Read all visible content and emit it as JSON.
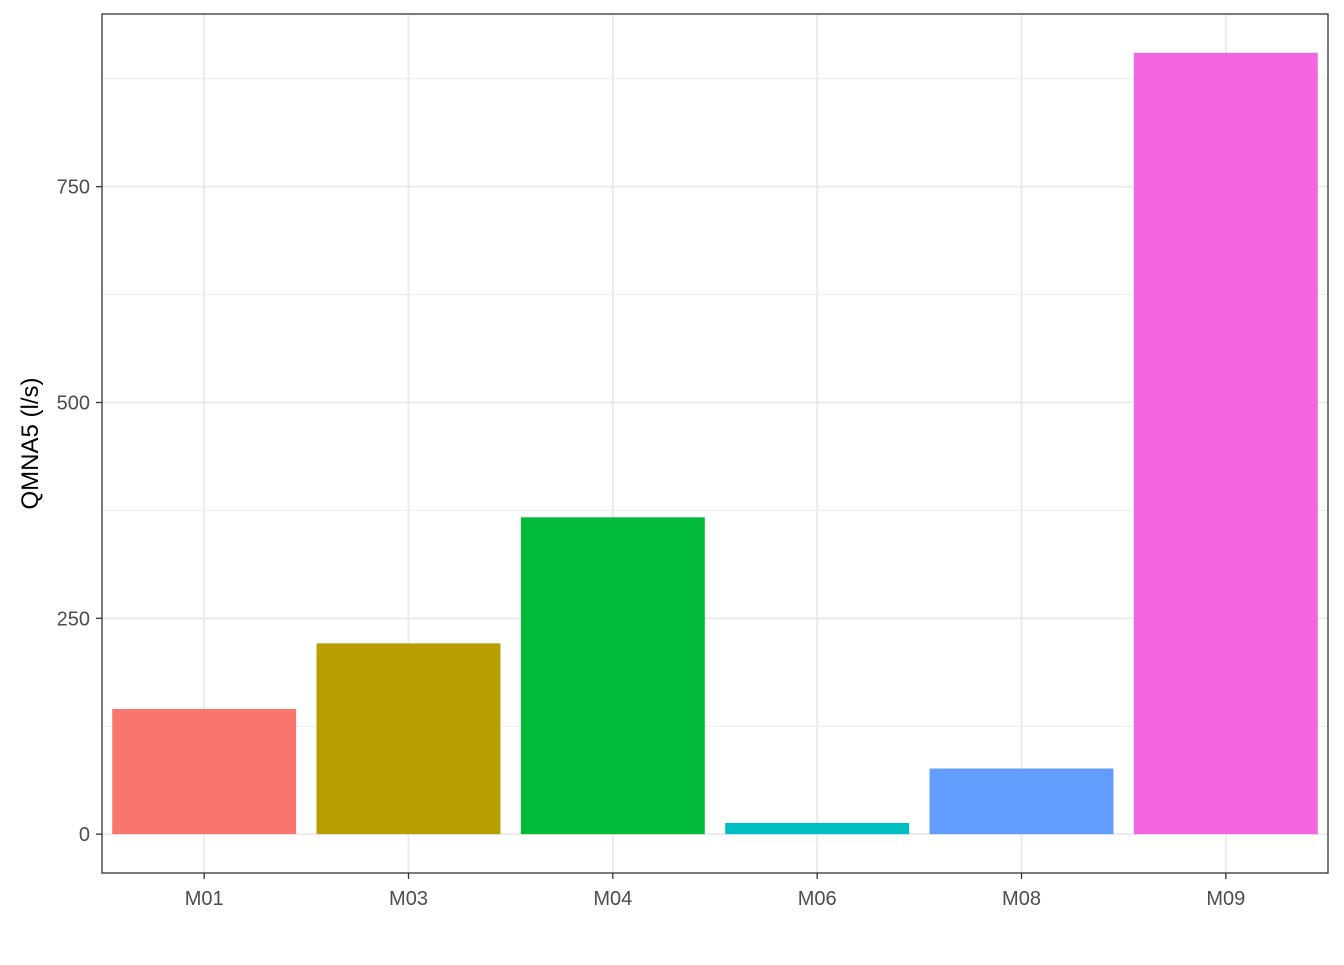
{
  "chart_data": {
    "type": "bar",
    "title": "",
    "xlabel": "",
    "ylabel": "QMNA5 (l/s)",
    "categories": [
      "M01",
      "M03",
      "M04",
      "M06",
      "M08",
      "M09"
    ],
    "values": [
      145,
      221,
      367,
      13,
      76,
      905
    ],
    "colors": [
      "#F8766D",
      "#B79F00",
      "#00BA38",
      "#00BFC4",
      "#619CFF",
      "#F564E3"
    ],
    "ylim": [
      -45,
      950
    ],
    "yticks": [
      0,
      250,
      500,
      750
    ],
    "ytick_labels": [
      "0",
      "250",
      "500",
      "750"
    ],
    "grid": true,
    "legend": "none"
  }
}
